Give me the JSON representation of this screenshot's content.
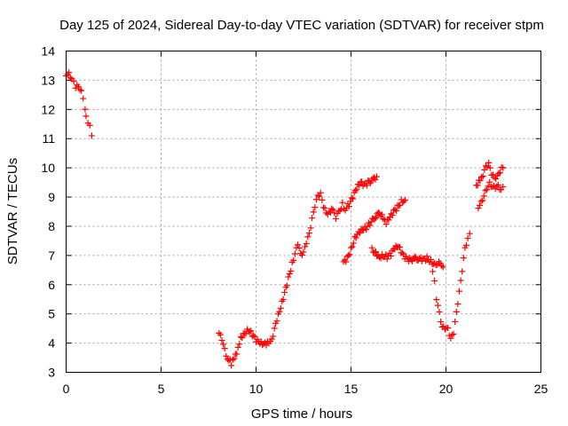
{
  "chart_data": {
    "type": "scatter",
    "title": "Day 125 of 2024, Sidereal Day-to-day VTEC variation (SDTVAR) for receiver stpm",
    "xlabel": "GPS time / hours",
    "ylabel": "SDTVAR / TECUs",
    "xlim": [
      0,
      25
    ],
    "ylim": [
      3,
      14
    ],
    "xticks": [
      0,
      5,
      10,
      15,
      20,
      25
    ],
    "yticks": [
      3,
      4,
      5,
      6,
      7,
      8,
      9,
      10,
      11,
      12,
      13,
      14
    ],
    "grid": true,
    "marker": "+",
    "color": "#ff0000",
    "series": [
      {
        "name": "SDTVAR",
        "segments": [
          [
            [
              0.0,
              13.15
            ],
            [
              0.15,
              13.2
            ],
            [
              0.3,
              13.1
            ],
            [
              0.4,
              12.9
            ],
            [
              0.5,
              12.8
            ],
            [
              0.65,
              12.75
            ],
            [
              0.8,
              12.6
            ],
            [
              0.9,
              12.4
            ],
            [
              1.0,
              12.0
            ],
            [
              1.05,
              11.7
            ],
            [
              1.15,
              11.6
            ],
            [
              1.25,
              11.4
            ],
            [
              1.35,
              11.1
            ]
          ],
          [
            [
              8.05,
              4.4
            ],
            [
              8.2,
              4.1
            ],
            [
              8.35,
              3.75
            ],
            [
              8.5,
              3.5
            ],
            [
              8.7,
              3.3
            ],
            [
              8.85,
              3.45
            ],
            [
              9.05,
              3.8
            ],
            [
              9.2,
              4.2
            ],
            [
              9.4,
              4.35
            ],
            [
              9.6,
              4.45
            ],
            [
              9.8,
              4.3
            ],
            [
              10.0,
              4.1
            ],
            [
              10.2,
              4.0
            ],
            [
              10.4,
              3.95
            ],
            [
              10.6,
              4.0
            ],
            [
              10.75,
              4.05
            ],
            [
              10.9,
              4.3
            ],
            [
              11.1,
              4.8
            ],
            [
              11.3,
              5.2
            ],
            [
              11.5,
              5.7
            ],
            [
              11.7,
              6.2
            ],
            [
              11.9,
              6.7
            ],
            [
              12.05,
              7.1
            ],
            [
              12.2,
              7.4
            ],
            [
              12.35,
              7.0
            ],
            [
              12.5,
              7.15
            ],
            [
              12.65,
              7.45
            ],
            [
              12.8,
              7.7
            ],
            [
              12.95,
              8.3
            ],
            [
              13.1,
              8.7
            ],
            [
              13.25,
              9.0
            ],
            [
              13.4,
              9.15
            ],
            [
              13.55,
              8.7
            ],
            [
              13.7,
              8.4
            ],
            [
              13.85,
              8.5
            ],
            [
              14.05,
              8.6
            ],
            [
              14.2,
              8.3
            ],
            [
              14.35,
              8.45
            ],
            [
              14.55,
              8.75
            ],
            [
              14.7,
              8.6
            ],
            [
              14.9,
              8.75
            ],
            [
              15.1,
              9.0
            ],
            [
              15.3,
              9.3
            ],
            [
              15.5,
              9.5
            ],
            [
              15.7,
              9.4
            ],
            [
              15.9,
              9.5
            ],
            [
              16.15,
              9.6
            ],
            [
              16.35,
              9.7
            ]
          ],
          [
            [
              14.6,
              6.75
            ],
            [
              14.8,
              6.9
            ],
            [
              15.0,
              7.2
            ],
            [
              15.2,
              7.6
            ],
            [
              15.4,
              7.8
            ],
            [
              15.6,
              7.9
            ],
            [
              15.8,
              7.95
            ],
            [
              16.0,
              8.1
            ],
            [
              16.25,
              8.3
            ],
            [
              16.5,
              8.45
            ],
            [
              16.7,
              8.3
            ],
            [
              16.85,
              8.1
            ],
            [
              17.05,
              8.3
            ],
            [
              17.25,
              8.5
            ],
            [
              17.45,
              8.65
            ],
            [
              17.65,
              8.85
            ],
            [
              17.85,
              8.9
            ]
          ],
          [
            [
              16.1,
              7.2
            ],
            [
              16.3,
              7.1
            ],
            [
              16.5,
              6.95
            ],
            [
              16.7,
              7.0
            ],
            [
              16.9,
              6.95
            ],
            [
              17.1,
              7.05
            ],
            [
              17.3,
              7.25
            ],
            [
              17.5,
              7.3
            ],
            [
              17.7,
              7.05
            ],
            [
              17.9,
              6.9
            ],
            [
              18.1,
              6.85
            ],
            [
              18.35,
              6.9
            ],
            [
              18.6,
              6.88
            ],
            [
              18.8,
              6.85
            ],
            [
              19.0,
              6.9
            ],
            [
              19.2,
              6.8
            ],
            [
              19.4,
              6.7
            ],
            [
              19.55,
              6.75
            ],
            [
              19.7,
              6.7
            ],
            [
              19.85,
              6.6
            ]
          ],
          [
            [
              19.3,
              6.5
            ],
            [
              19.4,
              6.1
            ],
            [
              19.5,
              5.5
            ],
            [
              19.65,
              5.0
            ],
            [
              19.8,
              4.6
            ],
            [
              19.95,
              4.5
            ],
            [
              20.1,
              4.45
            ],
            [
              20.25,
              4.2
            ],
            [
              20.4,
              4.35
            ],
            [
              20.55,
              5.0
            ],
            [
              20.7,
              5.8
            ],
            [
              20.85,
              6.5
            ],
            [
              21.0,
              7.2
            ],
            [
              21.15,
              7.6
            ],
            [
              21.25,
              7.75
            ]
          ],
          [
            [
              21.6,
              9.4
            ],
            [
              21.8,
              9.6
            ],
            [
              21.95,
              9.75
            ],
            [
              22.1,
              10.0
            ],
            [
              22.25,
              10.2
            ],
            [
              22.4,
              9.8
            ],
            [
              22.55,
              9.6
            ],
            [
              22.7,
              9.75
            ],
            [
              22.85,
              9.9
            ],
            [
              23.0,
              10.0
            ]
          ],
          [
            [
              21.7,
              8.6
            ],
            [
              21.85,
              8.8
            ],
            [
              22.0,
              9.1
            ],
            [
              22.15,
              9.25
            ],
            [
              22.3,
              9.45
            ],
            [
              22.45,
              9.4
            ],
            [
              22.6,
              9.3
            ],
            [
              22.75,
              9.35
            ],
            [
              22.9,
              9.3
            ],
            [
              23.0,
              9.35
            ]
          ]
        ]
      }
    ]
  }
}
